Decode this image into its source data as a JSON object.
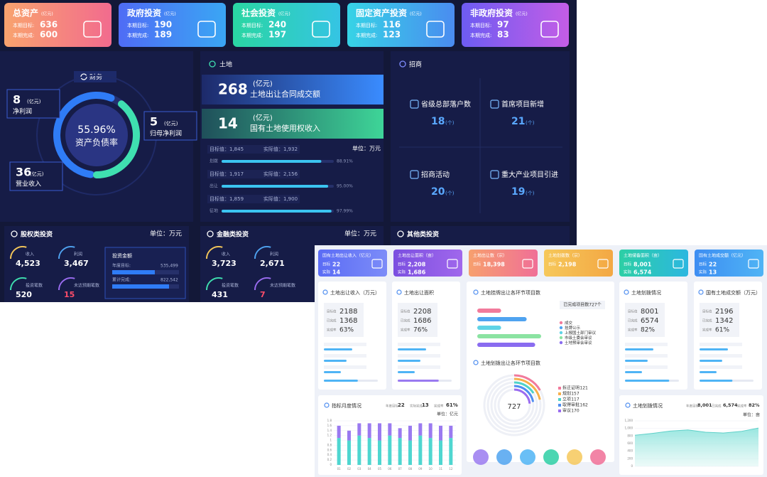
{
  "dark": {
    "kpis": [
      {
        "title": "总资产",
        "unit": "(亿元)",
        "target_label": "本期目标:",
        "target": 636,
        "done_label": "本期完成:",
        "done": 600
      },
      {
        "title": "政府投资",
        "unit": "(亿元)",
        "target_label": "本期目标:",
        "target": 190,
        "done_label": "本期完成:",
        "done": 189
      },
      {
        "title": "社会投资",
        "unit": "(亿元)",
        "target_label": "本期目标:",
        "target": 240,
        "done_label": "本期完成:",
        "done": 197
      },
      {
        "title": "固定资产投资",
        "unit": "(亿元)",
        "target_label": "本期目标:",
        "target": 116,
        "done_label": "本期完成:",
        "done": 123
      },
      {
        "title": "非政府投资",
        "unit": "(亿元)",
        "target_label": "本期目标:",
        "target": 97,
        "done_label": "本期完成:",
        "done": 83
      }
    ],
    "finance": {
      "title": "财务",
      "ratio": {
        "value": 55.96,
        "value_label": "55.96%"
      },
      "ratio_label": "资产负债率",
      "badges": [
        {
          "value": 8,
          "unit": "(亿元)",
          "label": "净利润"
        },
        {
          "value": 5,
          "unit": "(亿元)",
          "label": "归母净利润"
        },
        {
          "value": 36,
          "unit": "(亿元)",
          "label": "营业收入"
        }
      ]
    },
    "land": {
      "title": "土地",
      "banners": [
        {
          "value": 268,
          "unit": "(亿元)",
          "label": "土地出让合同成交额"
        },
        {
          "value": 14,
          "unit": "(亿元)",
          "label": "国有土地使用权收入"
        }
      ],
      "unit": "单位：万元",
      "rows": [
        {
          "target": "目标值：1,845",
          "actual": "实际值：1,932",
          "name": "划拨",
          "rate": {
            "value": 88.91,
            "value_label": "88.91%"
          }
        },
        {
          "target": "目标值：1,917",
          "actual": "实际值：2,156",
          "name": "出让",
          "rate": {
            "value": 95.0,
            "value_label": "95.00%"
          }
        },
        {
          "target": "目标值：1,859",
          "actual": "实际值：1,900",
          "name": "征地",
          "rate": {
            "value": 97.99,
            "value_label": "97.99%"
          }
        }
      ]
    },
    "invest": {
      "title": "招商",
      "items": [
        {
          "label": "省级总部落户数",
          "value": 18,
          "unit": "(个)"
        },
        {
          "label": "首席项目新增",
          "value": 21,
          "unit": "(个)"
        },
        {
          "label": "招商活动",
          "value": 20,
          "unit": "(个)"
        },
        {
          "label": "重大产业项目引进",
          "value": 19,
          "unit": "(个)"
        }
      ]
    },
    "bottom": [
      {
        "title": "股权类投资",
        "unit": "单位：万元",
        "metrics": [
          {
            "label": "收入",
            "value": "4,523"
          },
          {
            "label": "利润",
            "value": "3,467"
          },
          {
            "label": "投资笔数",
            "value": "520"
          },
          {
            "label": "未达预期笔数",
            "value": "15"
          }
        ],
        "amount": {
          "title": "投资金额",
          "rows": [
            {
              "label": "年度目标:",
              "value": "535,499"
            },
            {
              "label": "累计完成:",
              "value": "822,542"
            }
          ]
        }
      },
      {
        "title": "金融类投资",
        "unit": "单位：万元",
        "metrics": [
          {
            "label": "收入",
            "value": "3,723"
          },
          {
            "label": "利润",
            "value": "2,671"
          },
          {
            "label": "投资笔数",
            "value": "431"
          },
          {
            "label": "未达预期笔数",
            "value": "7"
          }
        ]
      },
      {
        "title": "其他类投资"
      }
    ]
  },
  "light": {
    "cards": [
      {
        "title": "国有土地出让收入（亿元）",
        "lines": [
          {
            "label": "目标",
            "value": "22"
          },
          {
            "label": "实际",
            "value": "14"
          }
        ]
      },
      {
        "title": "土地出让面积（亩）",
        "lines": [
          {
            "label": "目标",
            "value": "2,208"
          },
          {
            "label": "实际",
            "value": "1,686"
          }
        ]
      },
      {
        "title": "土地出让数（宗）",
        "lines": [
          {
            "label": "目标",
            "value": "18,398"
          }
        ]
      },
      {
        "title": "土地划拨数（宗）",
        "lines": [
          {
            "label": "目标",
            "value": "2,198"
          }
        ]
      },
      {
        "title": "土地储备面积（亩）",
        "lines": [
          {
            "label": "目标",
            "value": "8,001"
          },
          {
            "label": "实际",
            "value": "6,574"
          }
        ]
      },
      {
        "title": "国有土地成交额（亿元）",
        "lines": [
          {
            "label": "目标",
            "value": "22"
          },
          {
            "label": "实际",
            "value": "13"
          }
        ]
      }
    ],
    "panels": [
      {
        "title": "土地出让收入（万元）",
        "target": {
          "label": "目标值",
          "value": "2188"
        },
        "done": {
          "label": "已完成",
          "value": "1368"
        },
        "rate": {
          "label": "完成率",
          "value": 63,
          "value_label": "63%"
        }
      },
      {
        "title": "土地出让面积",
        "target": {
          "label": "目标值",
          "value": "2208"
        },
        "done": {
          "label": "已完成",
          "value": "1686"
        },
        "rate": {
          "label": "完成率",
          "value": 76,
          "value_label": "76%"
        }
      },
      {
        "title": "土地划拨情况",
        "target": {
          "label": "目标值",
          "value": "8001"
        },
        "done": {
          "label": "已完成",
          "value": "6574"
        },
        "rate": {
          "label": "完成率",
          "value": 82,
          "value_label": "82%"
        }
      },
      {
        "title": "国有土地成交额（万元）",
        "target": {
          "label": "目标值",
          "value": "2196"
        },
        "done": {
          "label": "已完成",
          "value": "1342"
        },
        "rate": {
          "label": "完成率",
          "value": 61,
          "value_label": "61%"
        }
      }
    ],
    "listing": {
      "title": "土地挂牌出让各环节项目数",
      "done": "已完成项目数727个",
      "legend": [
        "成交",
        "挂牌公示",
        "上报国土部门审议",
        "市级土委会审议",
        "土地预审会审议"
      ],
      "colors": [
        "#f27a9b",
        "#4fa3f0",
        "#5fd3e6",
        "#8be3a2",
        "#8a6cf0"
      ],
      "values": [
        28,
        58,
        28,
        75,
        68
      ],
      "xlim": [
        0,
        100
      ]
    },
    "transfer": {
      "title": "土地划拨出让各环节项目数",
      "total": 727,
      "items": [
        {
          "name": "拆迁证明",
          "value": 121,
          "color": "#f27a9b"
        },
        {
          "name": "规划",
          "value": 157,
          "color": "#f6b04c"
        },
        {
          "name": "立项",
          "value": 117,
          "color": "#4fd3c9"
        },
        {
          "name": "取得审批",
          "value": 162,
          "color": "#4f8ef0"
        },
        {
          "name": "审议",
          "value": 170,
          "color": "#9a6cf0"
        }
      ]
    },
    "monthly": {
      "title": "指标月度情况",
      "stats": [
        {
          "label": "年度目标",
          "value": "22"
        },
        {
          "label": "实际完成",
          "value": "13"
        },
        {
          "label": "完成率",
          "value": "61%"
        }
      ],
      "unit": "单位：亿元",
      "chart": {
        "type": "bar",
        "categories": [
          "01",
          "02",
          "03",
          "04",
          "05",
          "06",
          "07",
          "08",
          "09",
          "10",
          "11",
          "12"
        ],
        "series": [
          {
            "color": "#4fd6d0",
            "values": [
              1.1,
              1.0,
              1.2,
              1.1,
              1.0,
              1.2,
              1.1,
              1.0,
              1.2,
              1.1,
              1.0,
              1.1
            ]
          },
          {
            "color": "#9a7af0",
            "values": [
              0.5,
              0.4,
              0.5,
              0.6,
              0.7,
              0.5,
              0.4,
              0.6,
              0.5,
              0.6,
              0.6,
              0.5
            ]
          }
        ],
        "ylim": [
          0,
          1.8
        ],
        "yticks": [
          0,
          0.2,
          0.4,
          0.6,
          0.8,
          1,
          1.2,
          1.4,
          1.6,
          1.8
        ]
      }
    },
    "allocation": {
      "title": "土地划拨情况",
      "stats": [
        {
          "label": "年度目标",
          "value": "8,001"
        },
        {
          "label": "已完成",
          "value": "6,574"
        },
        {
          "label": "完成率",
          "value": "82%"
        }
      ],
      "unit": "单位：亩",
      "chart": {
        "type": "area",
        "color": "#5fd0c9",
        "values": [
          820,
          870,
          930,
          960,
          900,
          880,
          920,
          1010
        ],
        "ylim": [
          0,
          1200
        ],
        "yticks": [
          0,
          200,
          400,
          600,
          800,
          {
            "value": 1000,
            "label": "1,000"
          },
          {
            "value": 1200,
            "label": "1,200"
          }
        ]
      }
    }
  }
}
